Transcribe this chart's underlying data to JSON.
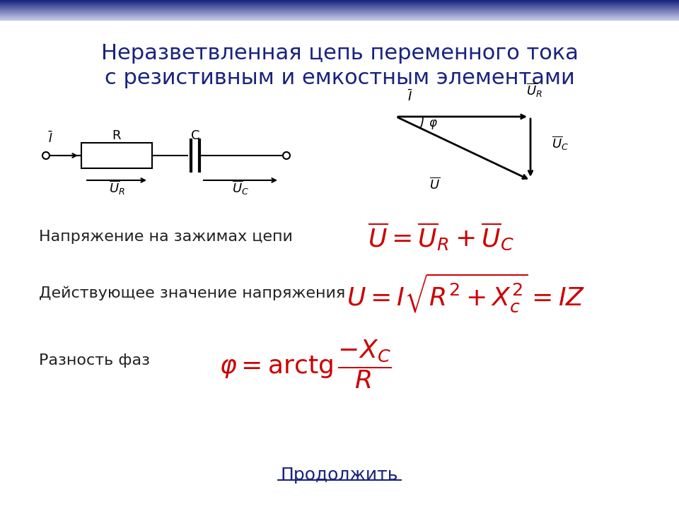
{
  "title_line1": "Неразветвленная цепь переменного тока",
  "title_line2": "с резистивным и емкостным элементами",
  "title_color": "#1a237e",
  "title_fontsize": 22,
  "bg_color": "#ffffff",
  "header_gradient_top": "#1a237e",
  "header_gradient_bottom": "#c5cae9",
  "text_color_black": "#222222",
  "text_color_red": "#cc0000",
  "label_napryazhenie": "Напряжение на зажимах цепи",
  "label_deystvuyushee": "Действующее значение напряжения",
  "label_raznost": "Разность фаз",
  "link_text": "Продолжить",
  "formula1": "$\\overline{U}=\\overline{U}_R +\\overline{U}_C$",
  "formula2": "$U=I\\sqrt{R^2+X_c^2}=IZ$",
  "formula3": "$\\varphi=\\mathrm{arctg}\\dfrac{-X_C}{R}$"
}
